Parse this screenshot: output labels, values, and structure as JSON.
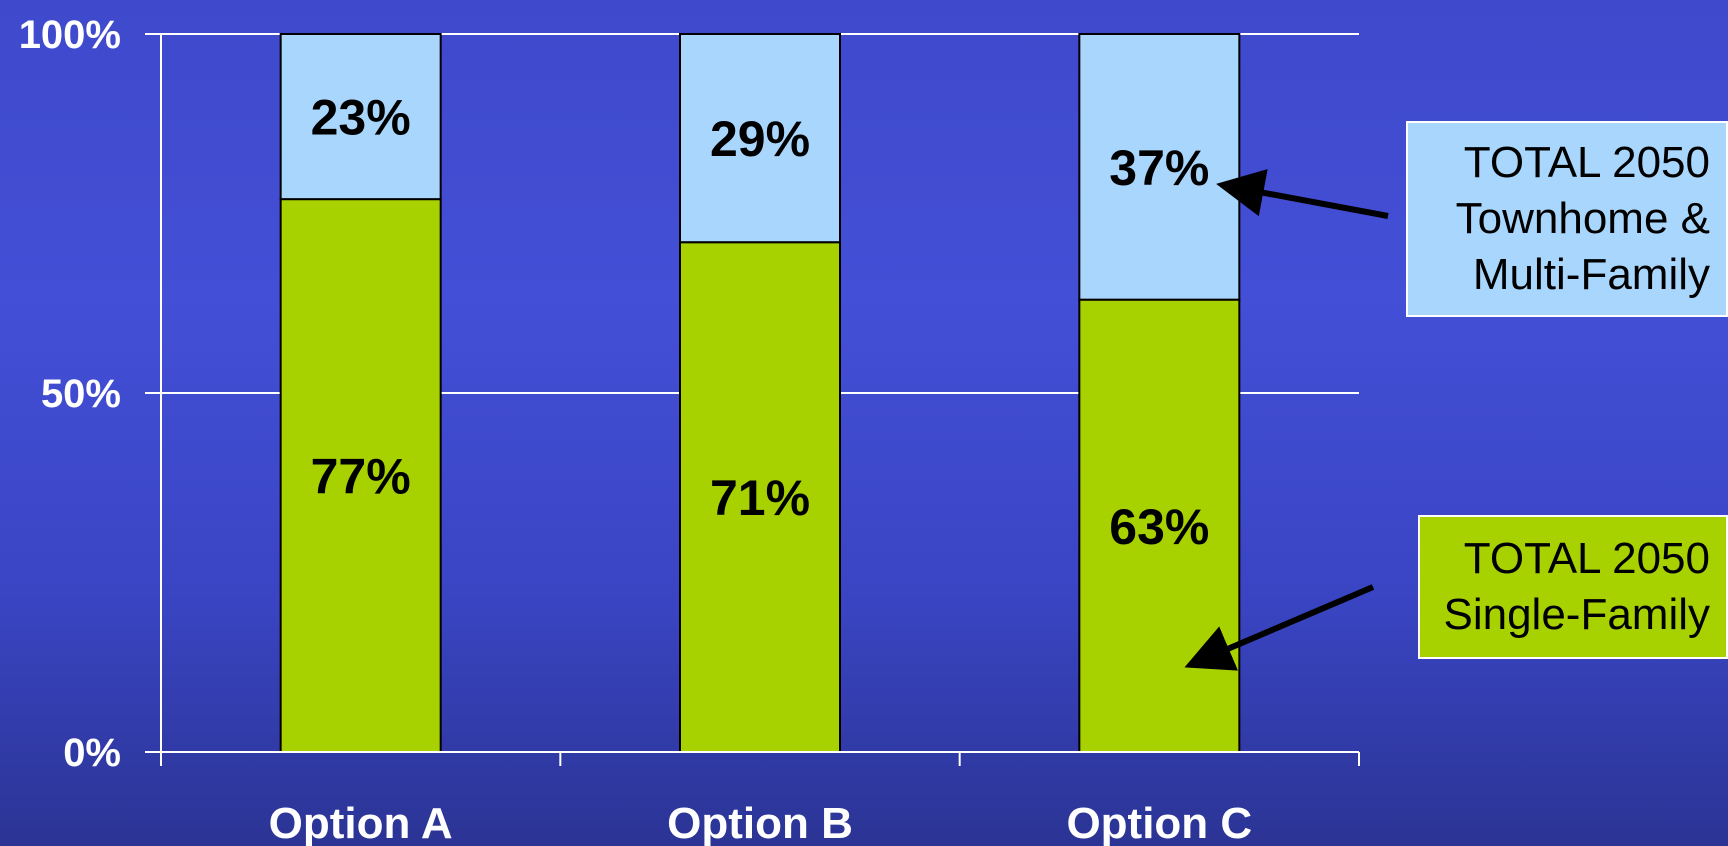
{
  "chart_data": {
    "type": "bar",
    "stacked": true,
    "categories": [
      "Option A",
      "Option B",
      "Option C"
    ],
    "series": [
      {
        "values": [
          77,
          71,
          63
        ],
        "color": "#a8d100",
        "labels": [
          "77%",
          "71%",
          "63%"
        ]
      },
      {
        "values": [
          23,
          29,
          37
        ],
        "color": "#a9d6fc",
        "labels": [
          "23%",
          "29%",
          "37%"
        ]
      }
    ],
    "ylim": [
      0,
      100
    ],
    "yticks": [
      0,
      50,
      100
    ],
    "ytick_labels": [
      "0%",
      "50%",
      "100%"
    ],
    "grid": true,
    "title": "",
    "xlabel": "",
    "ylabel": ""
  },
  "callouts": {
    "multifamily": {
      "lines": [
        "TOTAL 2050",
        "Townhome &",
        "Multi-Family"
      ],
      "color": "#a9d6fc"
    },
    "singlefamily": {
      "lines": [
        "TOTAL 2050",
        "Single-Family"
      ],
      "color": "#a8d100"
    }
  },
  "colors": {
    "axis": "#ffffff",
    "grid": "#ffffff",
    "bar_outline": "#000000",
    "arrow": "#000000"
  }
}
